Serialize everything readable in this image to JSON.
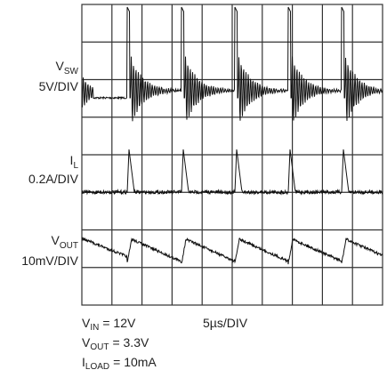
{
  "channels": [
    {
      "symbol": "V",
      "subscript": "SW",
      "scale": "5V/DIV"
    },
    {
      "symbol": "I",
      "subscript": "L",
      "scale": "0.2A/DIV"
    },
    {
      "symbol": "V",
      "subscript": "OUT",
      "scale": "10mV/DIV"
    }
  ],
  "conditions": [
    {
      "symbol": "V",
      "subscript": "IN",
      "value": "= 12V"
    },
    {
      "symbol": "V",
      "subscript": "OUT",
      "value": "= 3.3V"
    },
    {
      "symbol": "I",
      "subscript": "LOAD",
      "value": "= 10mA"
    }
  ],
  "timebase": "5µs/DIV"
}
